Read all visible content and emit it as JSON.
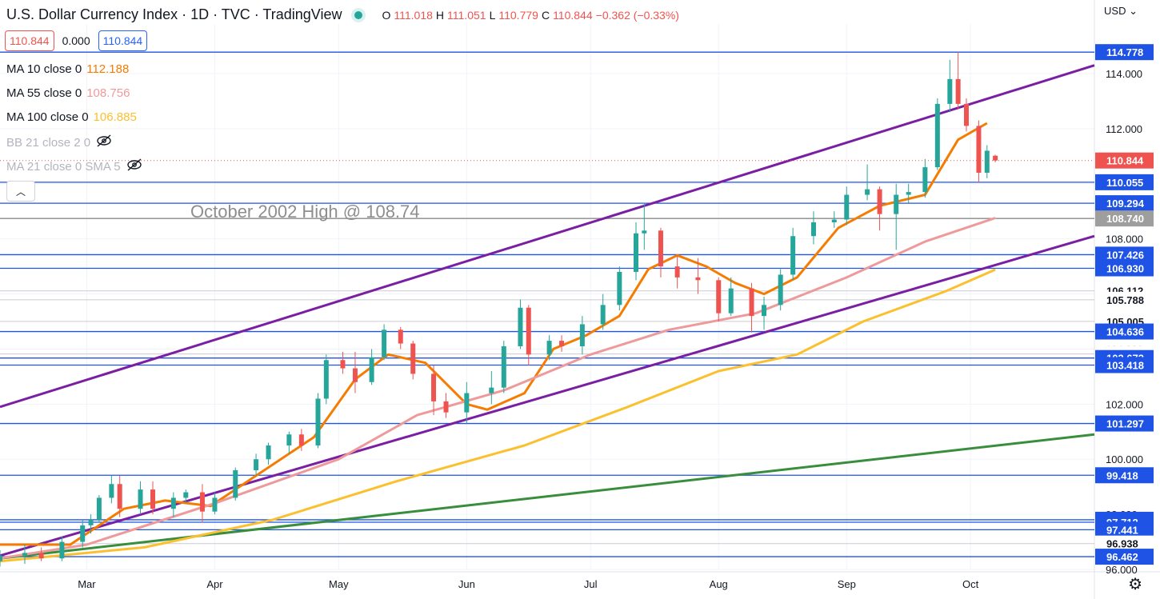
{
  "header": {
    "title": "U.S. Dollar Currency Index · 1D · TVC · TradingView",
    "ohlc": {
      "o_label": "O",
      "o": "111.018",
      "h_label": "H",
      "h": "111.051",
      "l_label": "L",
      "l": "110.779",
      "c_label": "C",
      "c": "110.844",
      "chg": "−0.362 (−0.33%)"
    }
  },
  "price_boxes": {
    "sell": "110.844",
    "spread": "0.000",
    "buy": "110.844"
  },
  "indicators": [
    {
      "label": "MA 10 close 0",
      "value": "112.188",
      "color": "#f57c00"
    },
    {
      "label": "MA 55 close 0",
      "value": "108.756",
      "color": "#ef9a9a"
    },
    {
      "label": "MA 100 close 0",
      "value": "106.885",
      "color": "#fbc02d"
    },
    {
      "label": "BB 21 close 2 0",
      "value": "",
      "color": "#b2b5be",
      "hidden": true
    },
    {
      "label": "MA 21 close 0 SMA 5",
      "value": "",
      "color": "#b2b5be",
      "hidden": true
    }
  ],
  "currency_label": "USD",
  "icons": {
    "collapse": "chevron-up-icon",
    "visibility": "eye-off-icon",
    "settings": "gear-icon",
    "currency": "chevron-down-icon"
  },
  "chart_data": {
    "type": "candlestick",
    "title": "U.S. Dollar Currency Index, 1D",
    "annotation": "October 2002 High @ 108.74",
    "x_ticks": [
      "Mar",
      "Apr",
      "May",
      "Jun",
      "Jul",
      "Aug",
      "Sep",
      "Oct"
    ],
    "y_ticks": [
      96.0,
      98.0,
      100.0,
      102.0,
      104.0,
      106.0,
      108.0,
      110.0,
      112.0,
      114.0
    ],
    "y_tick_labels": [
      "96.000",
      "98.000",
      "100.000",
      "102.000",
      "104.000",
      "106.000",
      "108.000",
      "110.000",
      "112.000",
      "114.000"
    ],
    "ylim": [
      96.0,
      115.8
    ],
    "x_range": {
      "start": "2022-02-08",
      "end": "2022-10-31"
    },
    "last_price": {
      "value": 110.844,
      "color": "#ef5350"
    },
    "price_levels": [
      {
        "value": 114.778,
        "label": "114.778",
        "kind": "blue"
      },
      {
        "value": 110.055,
        "label": "110.055",
        "kind": "blue"
      },
      {
        "value": 109.294,
        "label": "109.294",
        "kind": "blue"
      },
      {
        "value": 108.74,
        "label": "108.740",
        "kind": "gray"
      },
      {
        "value": 107.426,
        "label": "107.426",
        "kind": "blue"
      },
      {
        "value": 106.93,
        "label": "106.930",
        "kind": "blue"
      },
      {
        "value": 106.112,
        "label": "106.112",
        "kind": "light"
      },
      {
        "value": 105.788,
        "label": "105.788",
        "kind": "light"
      },
      {
        "value": 105.005,
        "label": "105.005",
        "kind": "light"
      },
      {
        "value": 104.636,
        "label": "104.636",
        "kind": "blue"
      },
      {
        "value": 103.82,
        "label": "103.820",
        "kind": "light"
      },
      {
        "value": 103.673,
        "label": "103.673",
        "kind": "blue"
      },
      {
        "value": 103.418,
        "label": "103.418",
        "kind": "blue"
      },
      {
        "value": 101.297,
        "label": "101.297",
        "kind": "blue"
      },
      {
        "value": 99.418,
        "label": "99.418",
        "kind": "blue"
      },
      {
        "value": 97.802,
        "label": "97.802",
        "kind": "blue"
      },
      {
        "value": 97.712,
        "label": "97.712",
        "kind": "blue"
      },
      {
        "value": 97.441,
        "label": "97.441",
        "kind": "blue"
      },
      {
        "value": 96.938,
        "label": "96.938",
        "kind": "light"
      },
      {
        "value": 96.462,
        "label": "96.462",
        "kind": "blue"
      }
    ],
    "trendlines": [
      {
        "name": "channel top",
        "color": "#7b1fa2",
        "from": {
          "date": "2022-02-08",
          "value": 101.9
        },
        "to": {
          "date": "2022-10-31",
          "value": 114.3
        }
      },
      {
        "name": "channel bottom",
        "color": "#7b1fa2",
        "from": {
          "date": "2022-02-08",
          "value": 96.5
        },
        "to": {
          "date": "2022-10-31",
          "value": 108.1
        }
      },
      {
        "name": "long-term support",
        "color": "#388e3c",
        "from": {
          "date": "2022-02-08",
          "value": 96.4
        },
        "to": {
          "date": "2022-10-31",
          "value": 100.9
        }
      }
    ],
    "moving_averages": [
      {
        "name": "MA 10",
        "color": "#f57c00",
        "points": [
          [
            "2022-02-08",
            96.9
          ],
          [
            "2022-02-25",
            96.9
          ],
          [
            "2022-03-10",
            98.2
          ],
          [
            "2022-03-20",
            98.5
          ],
          [
            "2022-03-31",
            98.3
          ],
          [
            "2022-04-10",
            99.3
          ],
          [
            "2022-04-25",
            100.8
          ],
          [
            "2022-05-05",
            102.9
          ],
          [
            "2022-05-13",
            103.8
          ],
          [
            "2022-05-22",
            103.5
          ],
          [
            "2022-06-01",
            102.0
          ],
          [
            "2022-06-06",
            101.8
          ],
          [
            "2022-06-15",
            102.4
          ],
          [
            "2022-06-22",
            104.0
          ],
          [
            "2022-06-30",
            104.5
          ],
          [
            "2022-07-08",
            105.2
          ],
          [
            "2022-07-15",
            106.9
          ],
          [
            "2022-07-22",
            107.4
          ],
          [
            "2022-07-29",
            107.0
          ],
          [
            "2022-08-05",
            106.4
          ],
          [
            "2022-08-12",
            106.0
          ],
          [
            "2022-08-20",
            106.6
          ],
          [
            "2022-08-30",
            108.4
          ],
          [
            "2022-09-09",
            109.2
          ],
          [
            "2022-09-20",
            109.6
          ],
          [
            "2022-09-28",
            111.6
          ],
          [
            "2022-10-05",
            112.2
          ]
        ]
      },
      {
        "name": "MA 55",
        "color": "#ef9a9a",
        "points": [
          [
            "2022-02-08",
            96.4
          ],
          [
            "2022-03-01",
            96.9
          ],
          [
            "2022-04-01",
            98.4
          ],
          [
            "2022-05-01",
            100.0
          ],
          [
            "2022-05-20",
            101.6
          ],
          [
            "2022-06-10",
            102.5
          ],
          [
            "2022-07-01",
            103.8
          ],
          [
            "2022-07-20",
            104.7
          ],
          [
            "2022-08-10",
            105.3
          ],
          [
            "2022-09-01",
            106.6
          ],
          [
            "2022-09-20",
            107.9
          ],
          [
            "2022-10-07",
            108.756
          ]
        ]
      },
      {
        "name": "MA 100",
        "color": "#fbc02d",
        "points": [
          [
            "2022-02-08",
            96.3
          ],
          [
            "2022-03-15",
            96.8
          ],
          [
            "2022-04-15",
            97.8
          ],
          [
            "2022-05-15",
            99.2
          ],
          [
            "2022-06-15",
            100.5
          ],
          [
            "2022-07-10",
            101.9
          ],
          [
            "2022-08-01",
            103.2
          ],
          [
            "2022-08-20",
            103.8
          ],
          [
            "2022-09-05",
            105.0
          ],
          [
            "2022-09-25",
            106.1
          ],
          [
            "2022-10-07",
            106.885
          ]
        ]
      }
    ],
    "candles": [
      [
        "2022-02-08",
        96.3,
        96.7,
        96.1,
        96.5
      ],
      [
        "2022-02-14",
        96.5,
        96.9,
        96.2,
        96.6
      ],
      [
        "2022-02-18",
        96.6,
        96.8,
        96.3,
        96.4
      ],
      [
        "2022-02-23",
        96.4,
        97.2,
        96.3,
        97.0
      ],
      [
        "2022-02-28",
        97.0,
        97.8,
        96.8,
        97.6
      ],
      [
        "2022-03-02",
        97.6,
        98.0,
        97.3,
        97.8
      ],
      [
        "2022-03-04",
        97.8,
        98.7,
        97.7,
        98.6
      ],
      [
        "2022-03-07",
        98.6,
        99.4,
        98.4,
        99.1
      ],
      [
        "2022-03-09",
        99.1,
        99.4,
        97.9,
        98.2
      ],
      [
        "2022-03-14",
        98.2,
        99.2,
        98.0,
        98.9
      ],
      [
        "2022-03-17",
        98.9,
        99.2,
        98.0,
        98.2
      ],
      [
        "2022-03-22",
        98.2,
        98.8,
        97.9,
        98.6
      ],
      [
        "2022-03-25",
        98.6,
        98.9,
        98.4,
        98.8
      ],
      [
        "2022-03-29",
        98.8,
        99.1,
        97.7,
        98.1
      ],
      [
        "2022-04-01",
        98.1,
        98.8,
        98.0,
        98.6
      ],
      [
        "2022-04-06",
        98.6,
        99.7,
        98.5,
        99.6
      ],
      [
        "2022-04-11",
        99.6,
        100.2,
        99.4,
        100.0
      ],
      [
        "2022-04-14",
        100.0,
        100.6,
        99.8,
        100.5
      ],
      [
        "2022-04-19",
        100.5,
        101.0,
        100.2,
        100.9
      ],
      [
        "2022-04-22",
        100.9,
        101.1,
        100.3,
        100.5
      ],
      [
        "2022-04-26",
        100.5,
        102.4,
        100.4,
        102.2
      ],
      [
        "2022-04-28",
        102.2,
        103.8,
        102.0,
        103.6
      ],
      [
        "2022-05-02",
        103.6,
        103.9,
        103.1,
        103.3
      ],
      [
        "2022-05-05",
        103.3,
        103.9,
        102.4,
        102.8
      ],
      [
        "2022-05-09",
        102.8,
        104.0,
        102.7,
        103.7
      ],
      [
        "2022-05-12",
        103.7,
        104.9,
        103.6,
        104.7
      ],
      [
        "2022-05-16",
        104.7,
        104.8,
        104.0,
        104.2
      ],
      [
        "2022-05-19",
        104.2,
        104.3,
        102.9,
        103.1
      ],
      [
        "2022-05-24",
        103.1,
        103.4,
        101.6,
        102.1
      ],
      [
        "2022-05-27",
        102.1,
        102.4,
        101.5,
        101.7
      ],
      [
        "2022-06-01",
        101.7,
        102.8,
        101.3,
        102.4
      ],
      [
        "2022-06-07",
        102.4,
        103.2,
        102.0,
        102.6
      ],
      [
        "2022-06-10",
        102.6,
        104.3,
        102.4,
        104.1
      ],
      [
        "2022-06-14",
        104.1,
        105.8,
        104.0,
        105.5
      ],
      [
        "2022-06-16",
        105.5,
        105.6,
        103.4,
        103.8
      ],
      [
        "2022-06-21",
        103.8,
        104.5,
        103.6,
        104.3
      ],
      [
        "2022-06-24",
        104.3,
        104.5,
        103.9,
        104.1
      ],
      [
        "2022-06-29",
        104.1,
        105.2,
        103.8,
        104.9
      ],
      [
        "2022-07-04",
        104.9,
        106.0,
        104.7,
        105.6
      ],
      [
        "2022-07-08",
        105.6,
        107.0,
        105.4,
        106.8
      ],
      [
        "2022-07-12",
        106.8,
        108.6,
        106.5,
        108.2
      ],
      [
        "2022-07-14",
        108.2,
        109.3,
        107.6,
        108.3
      ],
      [
        "2022-07-18",
        108.3,
        108.4,
        106.6,
        107.0
      ],
      [
        "2022-07-22",
        107.0,
        107.4,
        106.2,
        106.6
      ],
      [
        "2022-07-27",
        106.6,
        107.3,
        106.0,
        106.5
      ],
      [
        "2022-08-01",
        106.5,
        106.6,
        105.0,
        105.3
      ],
      [
        "2022-08-04",
        105.3,
        106.6,
        105.2,
        106.2
      ],
      [
        "2022-08-09",
        106.2,
        106.4,
        104.6,
        105.2
      ],
      [
        "2022-08-12",
        105.2,
        105.9,
        104.7,
        105.6
      ],
      [
        "2022-08-16",
        105.6,
        106.9,
        105.4,
        106.7
      ],
      [
        "2022-08-19",
        106.7,
        108.4,
        106.5,
        108.1
      ],
      [
        "2022-08-24",
        108.1,
        109.0,
        107.8,
        108.6
      ],
      [
        "2022-08-29",
        108.6,
        109.0,
        108.4,
        108.7
      ],
      [
        "2022-09-01",
        108.7,
        109.9,
        108.5,
        109.6
      ],
      [
        "2022-09-06",
        109.6,
        110.7,
        109.4,
        109.8
      ],
      [
        "2022-09-09",
        109.8,
        109.9,
        108.3,
        108.9
      ],
      [
        "2022-09-13",
        108.9,
        110.0,
        107.6,
        109.6
      ],
      [
        "2022-09-16",
        109.6,
        110.0,
        109.3,
        109.7
      ],
      [
        "2022-09-20",
        109.7,
        110.9,
        109.5,
        110.6
      ],
      [
        "2022-09-23",
        110.6,
        113.1,
        110.5,
        112.9
      ],
      [
        "2022-09-26",
        112.9,
        114.5,
        112.6,
        113.8
      ],
      [
        "2022-09-28",
        113.8,
        114.778,
        112.7,
        112.9
      ],
      [
        "2022-09-30",
        112.9,
        113.1,
        111.9,
        112.1
      ],
      [
        "2022-10-03",
        112.1,
        112.3,
        110.055,
        110.4
      ],
      [
        "2022-10-05",
        110.4,
        111.4,
        110.2,
        111.2
      ],
      [
        "2022-10-07",
        111.018,
        111.051,
        110.779,
        110.844
      ]
    ]
  }
}
